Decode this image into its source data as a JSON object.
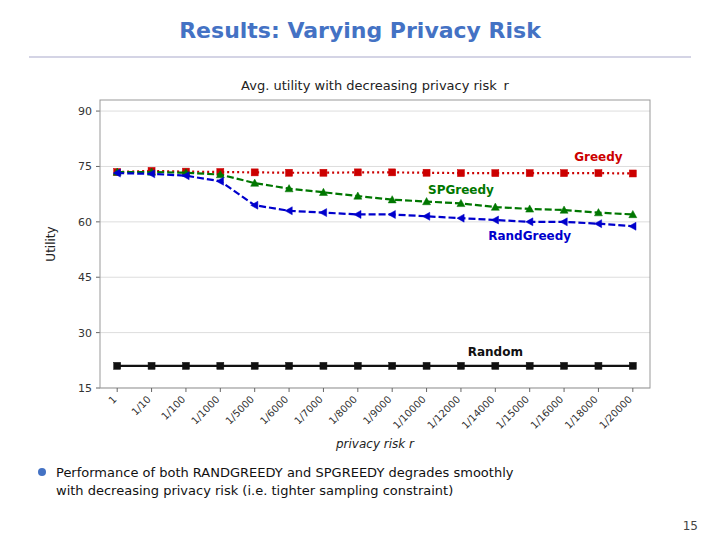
{
  "title": "Results: Varying Privacy Risk",
  "text": [
    "Performance of both RANDGREEDY and SPGREEDY degrades smoothly",
    "with decreasing privacy risk (i.e. tighter sampling constraint)"
  ],
  "page_number": "15",
  "chart_data": {
    "type": "line",
    "title": "Avg. utility with decreasing privacy risk  r",
    "x_label": "privacy risk r",
    "y_label": "Utility",
    "categories": [
      "1",
      "1/10",
      "1/100",
      "1/1000",
      "1/5000",
      "1/6000",
      "1/7000",
      "1/8000",
      "1/9000",
      "1/10000",
      "1/12000",
      "1/14000",
      "1/15000",
      "1/16000",
      "1/18000",
      "1/20000"
    ],
    "ylim": [
      15,
      93
    ],
    "yticks": [
      15,
      30,
      45,
      60,
      75,
      90
    ],
    "grid": true,
    "series": [
      {
        "name": "Greedy",
        "color": "#CC0000",
        "marker": "square",
        "line_style": "dotted",
        "values": [
          73.5,
          73.8,
          73.6,
          73.5,
          73.4,
          73.3,
          73.3,
          73.4,
          73.4,
          73.3,
          73.2,
          73.2,
          73.2,
          73.2,
          73.2,
          73.1
        ]
      },
      {
        "name": "SPGreedy",
        "color": "#007700",
        "marker": "triangle-up",
        "line_style": "dashed",
        "values": [
          73.5,
          73.5,
          73.3,
          72.8,
          70.5,
          69.0,
          68.0,
          67.0,
          66.0,
          65.5,
          65.0,
          64.0,
          63.5,
          63.2,
          62.5,
          62.0
        ]
      },
      {
        "name": "RandGreedy",
        "color": "#0000CC",
        "marker": "triangle-left",
        "line_style": "dashed",
        "values": [
          73.2,
          73.0,
          72.5,
          71.0,
          64.5,
          63.0,
          62.5,
          62.0,
          62.0,
          61.5,
          61.0,
          60.5,
          60.0,
          60.0,
          59.5,
          58.8
        ]
      },
      {
        "name": "Random",
        "color": "#111111",
        "marker": "square",
        "line_style": "solid",
        "values": [
          21.0,
          21.0,
          21.0,
          21.0,
          21.0,
          21.0,
          21.0,
          21.0,
          21.0,
          21.0,
          21.0,
          21.0,
          21.0,
          21.0,
          21.0,
          21.0
        ]
      }
    ]
  }
}
